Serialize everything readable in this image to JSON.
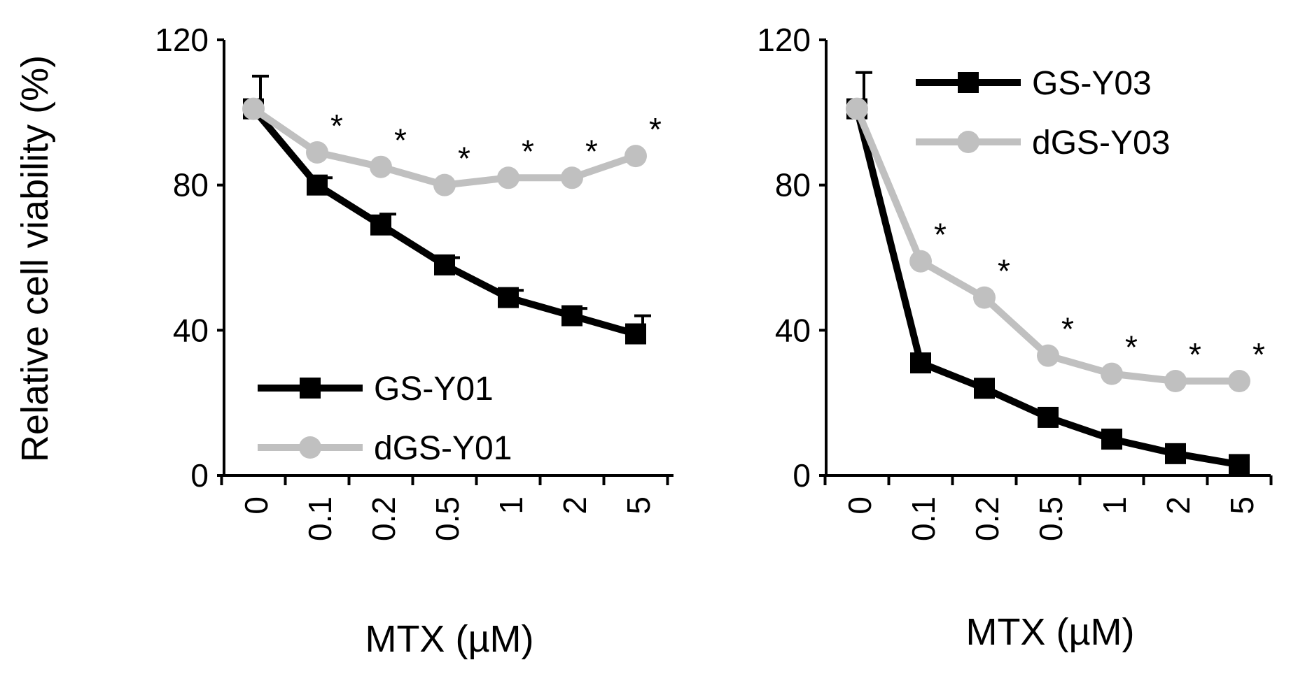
{
  "chart_data": [
    {
      "type": "line",
      "title": "",
      "ylabel": "Relative cell viability (%)",
      "xlabel": "MTX  (µM)",
      "ylim": [
        0,
        120
      ],
      "yticks": [
        0,
        40,
        80,
        120
      ],
      "categories": [
        "0",
        "0.1",
        "0.2",
        "0.5",
        "1",
        "2",
        "5"
      ],
      "legend_position": "bottom-left",
      "series": [
        {
          "name": "GS-Y01",
          "color": "#000000",
          "marker": "square",
          "values": [
            101,
            80,
            69,
            58,
            49,
            44,
            39
          ],
          "errors": [
            9,
            2,
            3,
            2,
            2,
            2,
            5
          ]
        },
        {
          "name": "dGS-Y01",
          "color": "#c0c0c0",
          "marker": "circle",
          "values": [
            101,
            89,
            85,
            80,
            82,
            82,
            88
          ],
          "errors": [
            0,
            0,
            0,
            0,
            0,
            0,
            0
          ]
        }
      ],
      "significance": [
        "",
        "*",
        "*",
        "*",
        "*",
        "*",
        "*"
      ]
    },
    {
      "type": "line",
      "title": "",
      "ylabel": "",
      "xlabel": "MTX  (µM)",
      "ylim": [
        0,
        120
      ],
      "yticks": [
        0,
        40,
        80,
        120
      ],
      "categories": [
        "0",
        "0.1",
        "0.2",
        "0.5",
        "1",
        "2",
        "5"
      ],
      "legend_position": "top-right",
      "series": [
        {
          "name": "GS-Y03",
          "color": "#000000",
          "marker": "square",
          "values": [
            101,
            31,
            24,
            16,
            10,
            6,
            3
          ],
          "errors": [
            10,
            0,
            0,
            0,
            0,
            0,
            0
          ]
        },
        {
          "name": "dGS-Y03",
          "color": "#c0c0c0",
          "marker": "circle",
          "values": [
            101,
            59,
            49,
            33,
            28,
            26,
            26
          ],
          "errors": [
            0,
            0,
            0,
            0,
            0,
            0,
            0
          ]
        }
      ],
      "significance": [
        "",
        "*",
        "*",
        "*",
        "*",
        "*",
        "*"
      ]
    }
  ]
}
